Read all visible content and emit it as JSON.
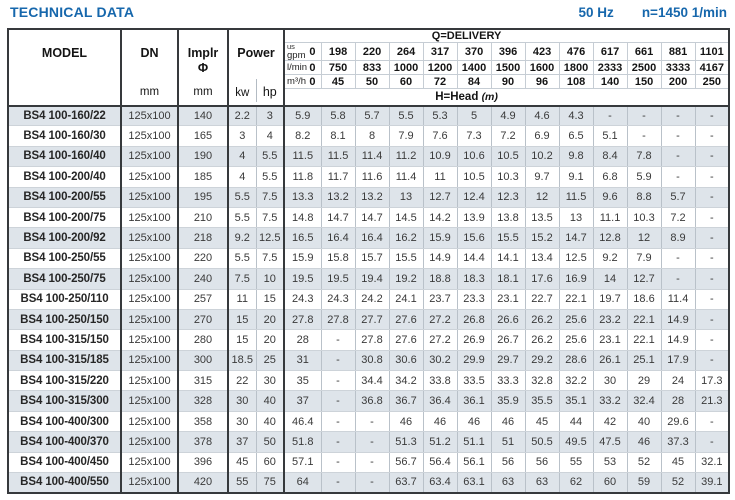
{
  "header": {
    "title": "TECHNICAL DATA",
    "frequency": "50 Hz",
    "speed": "n=1450 1/min"
  },
  "table": {
    "model_label": "MODEL",
    "dn_label": "DN",
    "dn_unit": "mm",
    "implr_label": "Implr",
    "implr_symbol": "Φ",
    "implr_unit": "mm",
    "power_label": "Power",
    "kw_label": "kw",
    "hp_label": "hp",
    "delivery_label": "Q=DELIVERY",
    "head_label": "H=Head",
    "head_unit": "(m)",
    "flow_rows": [
      {
        "unit_prefix": "us",
        "unit": "gpm",
        "zero": "0",
        "values": [
          "198",
          "220",
          "264",
          "317",
          "370",
          "396",
          "423",
          "476",
          "617",
          "661",
          "881",
          "1101"
        ]
      },
      {
        "unit_prefix": "",
        "unit": "l/min",
        "zero": "0",
        "values": [
          "750",
          "833",
          "1000",
          "1200",
          "1400",
          "1500",
          "1600",
          "1800",
          "2333",
          "2500",
          "3333",
          "4167"
        ]
      },
      {
        "unit_prefix": "",
        "unit": "m³/h",
        "zero": "0",
        "values": [
          "45",
          "50",
          "60",
          "72",
          "84",
          "90",
          "96",
          "108",
          "140",
          "150",
          "200",
          "250"
        ]
      }
    ],
    "rows": [
      {
        "model": "BS4 100-160/22",
        "dn": "125x100",
        "implr": "140",
        "kw": "2.2",
        "hp": "3",
        "head": [
          "5.9",
          "5.8",
          "5.7",
          "5.5",
          "5.3",
          "5",
          "4.9",
          "4.6",
          "4.3",
          "-",
          "-",
          "-",
          "-"
        ]
      },
      {
        "model": "BS4 100-160/30",
        "dn": "125x100",
        "implr": "165",
        "kw": "3",
        "hp": "4",
        "head": [
          "8.2",
          "8.1",
          "8",
          "7.9",
          "7.6",
          "7.3",
          "7.2",
          "6.9",
          "6.5",
          "5.1",
          "-",
          "-",
          "-"
        ]
      },
      {
        "model": "BS4 100-160/40",
        "dn": "125x100",
        "implr": "190",
        "kw": "4",
        "hp": "5.5",
        "head": [
          "11.5",
          "11.5",
          "11.4",
          "11.2",
          "10.9",
          "10.6",
          "10.5",
          "10.2",
          "9.8",
          "8.4",
          "7.8",
          "-",
          "-"
        ]
      },
      {
        "model": "BS4 100-200/40",
        "dn": "125x100",
        "implr": "185",
        "kw": "4",
        "hp": "5.5",
        "head": [
          "11.8",
          "11.7",
          "11.6",
          "11.4",
          "11",
          "10.5",
          "10.3",
          "9.7",
          "9.1",
          "6.8",
          "5.9",
          "-",
          "-"
        ]
      },
      {
        "model": "BS4 100-200/55",
        "dn": "125x100",
        "implr": "195",
        "kw": "5.5",
        "hp": "7.5",
        "head": [
          "13.3",
          "13.2",
          "13.2",
          "13",
          "12.7",
          "12.4",
          "12.3",
          "12",
          "11.5",
          "9.6",
          "8.8",
          "5.7",
          "-"
        ]
      },
      {
        "model": "BS4 100-200/75",
        "dn": "125x100",
        "implr": "210",
        "kw": "5.5",
        "hp": "7.5",
        "head": [
          "14.8",
          "14.7",
          "14.7",
          "14.5",
          "14.2",
          "13.9",
          "13.8",
          "13.5",
          "13",
          "11.1",
          "10.3",
          "7.2",
          "-"
        ]
      },
      {
        "model": "BS4 100-200/92",
        "dn": "125x100",
        "implr": "218",
        "kw": "9.2",
        "hp": "12.5",
        "head": [
          "16.5",
          "16.4",
          "16.4",
          "16.2",
          "15.9",
          "15.6",
          "15.5",
          "15.2",
          "14.7",
          "12.8",
          "12",
          "8.9",
          "-"
        ]
      },
      {
        "model": "BS4 100-250/55",
        "dn": "125x100",
        "implr": "220",
        "kw": "5.5",
        "hp": "7.5",
        "head": [
          "15.9",
          "15.8",
          "15.7",
          "15.5",
          "14.9",
          "14.4",
          "14.1",
          "13.4",
          "12.5",
          "9.2",
          "7.9",
          "-",
          "-"
        ]
      },
      {
        "model": "BS4 100-250/75",
        "dn": "125x100",
        "implr": "240",
        "kw": "7.5",
        "hp": "10",
        "head": [
          "19.5",
          "19.5",
          "19.4",
          "19.2",
          "18.8",
          "18.3",
          "18.1",
          "17.6",
          "16.9",
          "14",
          "12.7",
          "-",
          "-"
        ]
      },
      {
        "model": "BS4 100-250/110",
        "dn": "125x100",
        "implr": "257",
        "kw": "11",
        "hp": "15",
        "head": [
          "24.3",
          "24.3",
          "24.2",
          "24.1",
          "23.7",
          "23.3",
          "23.1",
          "22.7",
          "22.1",
          "19.7",
          "18.6",
          "11.4",
          "-"
        ]
      },
      {
        "model": "BS4 100-250/150",
        "dn": "125x100",
        "implr": "270",
        "kw": "15",
        "hp": "20",
        "head": [
          "27.8",
          "27.8",
          "27.7",
          "27.6",
          "27.2",
          "26.8",
          "26.6",
          "26.2",
          "25.6",
          "23.2",
          "22.1",
          "14.9",
          "-"
        ]
      },
      {
        "model": "BS4 100-315/150",
        "dn": "125x100",
        "implr": "280",
        "kw": "15",
        "hp": "20",
        "head": [
          "28",
          "-",
          "27.8",
          "27.6",
          "27.2",
          "26.9",
          "26.7",
          "26.2",
          "25.6",
          "23.1",
          "22.1",
          "14.9",
          "-"
        ]
      },
      {
        "model": "BS4 100-315/185",
        "dn": "125x100",
        "implr": "300",
        "kw": "18.5",
        "hp": "25",
        "head": [
          "31",
          "-",
          "30.8",
          "30.6",
          "30.2",
          "29.9",
          "29.7",
          "29.2",
          "28.6",
          "26.1",
          "25.1",
          "17.9",
          "-"
        ]
      },
      {
        "model": "BS4 100-315/220",
        "dn": "125x100",
        "implr": "315",
        "kw": "22",
        "hp": "30",
        "head": [
          "35",
          "-",
          "34.4",
          "34.2",
          "33.8",
          "33.5",
          "33.3",
          "32.8",
          "32.2",
          "30",
          "29",
          "24",
          "17.3"
        ]
      },
      {
        "model": "BS4 100-315/300",
        "dn": "125x100",
        "implr": "328",
        "kw": "30",
        "hp": "40",
        "head": [
          "37",
          "-",
          "36.8",
          "36.7",
          "36.4",
          "36.1",
          "35.9",
          "35.5",
          "35.1",
          "33.2",
          "32.4",
          "28",
          "21.3"
        ]
      },
      {
        "model": "BS4 100-400/300",
        "dn": "125x100",
        "implr": "358",
        "kw": "30",
        "hp": "40",
        "head": [
          "46.4",
          "-",
          "-",
          "46",
          "46",
          "46",
          "46",
          "45",
          "44",
          "42",
          "40",
          "29.6",
          "-"
        ]
      },
      {
        "model": "BS4 100-400/370",
        "dn": "125x100",
        "implr": "378",
        "kw": "37",
        "hp": "50",
        "head": [
          "51.8",
          "-",
          "-",
          "51.3",
          "51.2",
          "51.1",
          "51",
          "50.5",
          "49.5",
          "47.5",
          "46",
          "37.3",
          "-"
        ]
      },
      {
        "model": "BS4 100-400/450",
        "dn": "125x100",
        "implr": "396",
        "kw": "45",
        "hp": "60",
        "head": [
          "57.1",
          "-",
          "-",
          "56.7",
          "56.4",
          "56.1",
          "56",
          "56",
          "55",
          "53",
          "52",
          "45",
          "32.1"
        ]
      },
      {
        "model": "BS4 100-400/550",
        "dn": "125x100",
        "implr": "420",
        "kw": "55",
        "hp": "75",
        "head": [
          "64",
          "-",
          "-",
          "63.7",
          "63.4",
          "63.1",
          "63",
          "63",
          "62",
          "60",
          "59",
          "52",
          "39.1"
        ]
      }
    ]
  },
  "colors": {
    "accent_blue": "#1667ac",
    "row_alt": "#dee4ea",
    "grid_light": "#b9c1c9",
    "grid_heavy": "#36393c"
  }
}
